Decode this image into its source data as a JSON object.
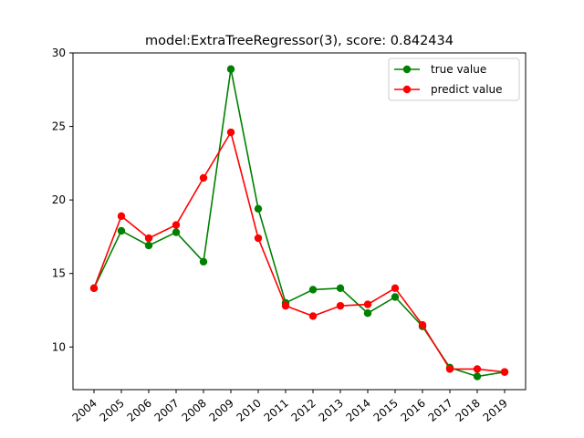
{
  "chart_data": {
    "type": "line",
    "title": "model:ExtraTreeRegressor(3), score: 0.842434",
    "xlabel": "",
    "ylabel": "",
    "categories": [
      "2004",
      "2005",
      "2006",
      "2007",
      "2008",
      "2009",
      "2010",
      "2011",
      "2012",
      "2013",
      "2014",
      "2015",
      "2016",
      "2017",
      "2018",
      "2019"
    ],
    "ylim": [
      7.1,
      30.0
    ],
    "yticks": [
      10,
      15,
      20,
      25,
      30
    ],
    "legend_position": "top-right",
    "series": [
      {
        "name": "true value",
        "color": "#008000",
        "values": [
          14.0,
          17.9,
          16.9,
          17.8,
          15.8,
          28.9,
          19.4,
          13.0,
          13.9,
          14.0,
          12.3,
          13.4,
          11.4,
          8.6,
          8.0,
          8.3
        ]
      },
      {
        "name": "predict value",
        "color": "#ff0000",
        "values": [
          14.0,
          18.9,
          17.4,
          18.3,
          21.5,
          24.6,
          17.4,
          12.8,
          12.1,
          12.8,
          12.9,
          14.0,
          11.5,
          8.5,
          8.5,
          8.3
        ]
      }
    ]
  }
}
